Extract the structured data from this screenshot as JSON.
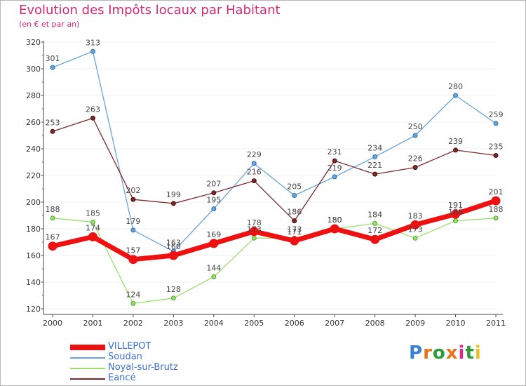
{
  "title": "Evolution des Impôts locaux par Habitant",
  "subtitle": "(en € et par an)",
  "logo": "Proxiti",
  "chart_data": {
    "type": "line",
    "title": "Evolution des Impôts locaux par Habitant",
    "subtitle": "(en € et par an)",
    "xlabel": "",
    "ylabel": "",
    "categories": [
      "2000",
      "2001",
      "2002",
      "2003",
      "2004",
      "2005",
      "2006",
      "2007",
      "2008",
      "2009",
      "2010",
      "2011"
    ],
    "ylim": [
      120,
      320
    ],
    "yticks": [
      120,
      140,
      160,
      180,
      200,
      220,
      240,
      260,
      280,
      300,
      320
    ],
    "legend_position": "bottom-left",
    "series": [
      {
        "name": "VILLEPOT",
        "color": "#ee1111",
        "values": [
          167,
          174,
          157,
          160,
          169,
          178,
          171,
          180,
          172,
          183,
          191,
          201
        ],
        "labels": [
          "167",
          "174",
          "157",
          "160",
          "169",
          "178",
          "171",
          "180",
          "172",
          "183",
          "191",
          "201"
        ]
      },
      {
        "name": "Soudan",
        "color": "#6aa3d9",
        "values": [
          301,
          313,
          179,
          163,
          195,
          229,
          205,
          219,
          234,
          250,
          280,
          259
        ],
        "labels": [
          "301",
          "313",
          "179",
          "163",
          "195",
          "229",
          "205",
          "219",
          "234",
          "250",
          "280",
          "259"
        ]
      },
      {
        "name": "Noyal-sur-Brutz",
        "color": "#9cde6e",
        "values": [
          188,
          185,
          124,
          128,
          144,
          173,
          173,
          180,
          184,
          173,
          186,
          188
        ],
        "labels": [
          "188",
          "185",
          "124",
          "128",
          "144",
          "173",
          "173",
          "180",
          "184",
          "173",
          "186",
          "188"
        ]
      },
      {
        "name": "Eancé",
        "color": "#7a2a2a",
        "values": [
          253,
          263,
          202,
          199,
          207,
          216,
          186,
          231,
          221,
          226,
          239,
          235
        ],
        "labels": [
          "253",
          "263",
          "202",
          "199",
          "207",
          "216",
          "186",
          "231",
          "221",
          "226",
          "239",
          "235"
        ]
      }
    ]
  }
}
